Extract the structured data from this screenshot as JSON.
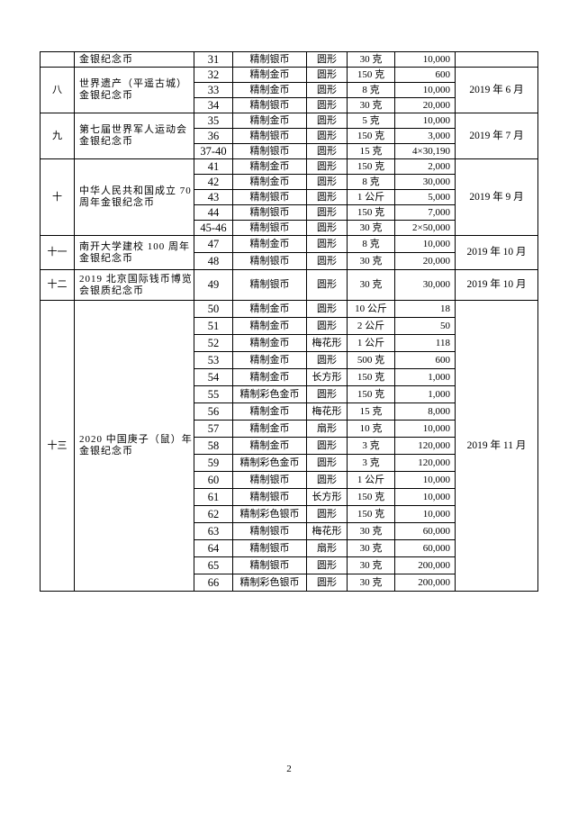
{
  "table": {
    "groups": [
      {
        "index": "",
        "name": "金银纪念币",
        "date": "",
        "row_height": 17,
        "rows": [
          {
            "no": "31",
            "type": "精制银币",
            "shape": "圆形",
            "weight": "30 克",
            "qty": "10,000"
          }
        ]
      },
      {
        "index": "八",
        "name": "世界遗产（平遥古城）金银纪念币",
        "date": "2019 年 6 月",
        "row_height": 17,
        "rows": [
          {
            "no": "32",
            "type": "精制金币",
            "shape": "圆形",
            "weight": "150 克",
            "qty": "600"
          },
          {
            "no": "33",
            "type": "精制金币",
            "shape": "圆形",
            "weight": "8 克",
            "qty": "10,000"
          },
          {
            "no": "34",
            "type": "精制银币",
            "shape": "圆形",
            "weight": "30 克",
            "qty": "20,000"
          }
        ]
      },
      {
        "index": "九",
        "name": "第七届世界军人运动会金银纪念币",
        "date": "2019 年 7 月",
        "row_height": 17,
        "rows": [
          {
            "no": "35",
            "type": "精制金币",
            "shape": "圆形",
            "weight": "5 克",
            "qty": "10,000"
          },
          {
            "no": "36",
            "type": "精制银币",
            "shape": "圆形",
            "weight": "150 克",
            "qty": "3,000"
          },
          {
            "no": "37-40",
            "type": "精制银币",
            "shape": "圆形",
            "weight": "15 克",
            "qty": "4×30,190"
          }
        ]
      },
      {
        "index": "十",
        "name": "中华人民共和国成立 70 周年金银纪念币",
        "date": "2019 年 9 月",
        "row_height": 17,
        "rows": [
          {
            "no": "41",
            "type": "精制金币",
            "shape": "圆形",
            "weight": "150 克",
            "qty": "2,000"
          },
          {
            "no": "42",
            "type": "精制金币",
            "shape": "圆形",
            "weight": "8 克",
            "qty": "30,000"
          },
          {
            "no": "43",
            "type": "精制银币",
            "shape": "圆形",
            "weight": "1 公斤",
            "qty": "5,000"
          },
          {
            "no": "44",
            "type": "精制银币",
            "shape": "圆形",
            "weight": "150 克",
            "qty": "7,000"
          },
          {
            "no": "45-46",
            "type": "精制银币",
            "shape": "圆形",
            "weight": "30 克",
            "qty": "2×50,000"
          }
        ]
      },
      {
        "index": "十一",
        "name": "南开大学建校 100 周年金银纪念币",
        "date": "2019 年 10 月",
        "row_height": 19,
        "rows": [
          {
            "no": "47",
            "type": "精制金币",
            "shape": "圆形",
            "weight": "8 克",
            "qty": "10,000"
          },
          {
            "no": "48",
            "type": "精制银币",
            "shape": "圆形",
            "weight": "30 克",
            "qty": "20,000"
          }
        ]
      },
      {
        "index": "十二",
        "name": "2019 北京国际钱币博览会银质纪念币",
        "date": "2019 年 10 月",
        "row_height": 34,
        "rows": [
          {
            "no": "49",
            "type": "精制银币",
            "shape": "圆形",
            "weight": "30 克",
            "qty": "30,000"
          }
        ]
      },
      {
        "index": "十三",
        "name": "2020 中国庚子（鼠）年金银纪念币",
        "date": "2019 年 11 月",
        "row_height": 19,
        "rows": [
          {
            "no": "50",
            "type": "精制金币",
            "shape": "圆形",
            "weight": "10 公斤",
            "qty": "18"
          },
          {
            "no": "51",
            "type": "精制金币",
            "shape": "圆形",
            "weight": "2 公斤",
            "qty": "50"
          },
          {
            "no": "52",
            "type": "精制金币",
            "shape": "梅花形",
            "weight": "1 公斤",
            "qty": "118"
          },
          {
            "no": "53",
            "type": "精制金币",
            "shape": "圆形",
            "weight": "500 克",
            "qty": "600"
          },
          {
            "no": "54",
            "type": "精制金币",
            "shape": "长方形",
            "weight": "150 克",
            "qty": "1,000"
          },
          {
            "no": "55",
            "type": "精制彩色金币",
            "shape": "圆形",
            "weight": "150 克",
            "qty": "1,000"
          },
          {
            "no": "56",
            "type": "精制金币",
            "shape": "梅花形",
            "weight": "15 克",
            "qty": "8,000"
          },
          {
            "no": "57",
            "type": "精制金币",
            "shape": "扇形",
            "weight": "10 克",
            "qty": "10,000"
          },
          {
            "no": "58",
            "type": "精制金币",
            "shape": "圆形",
            "weight": "3 克",
            "qty": "120,000"
          },
          {
            "no": "59",
            "type": "精制彩色金币",
            "shape": "圆形",
            "weight": "3 克",
            "qty": "120,000"
          },
          {
            "no": "60",
            "type": "精制银币",
            "shape": "圆形",
            "weight": "1 公斤",
            "qty": "10,000"
          },
          {
            "no": "61",
            "type": "精制银币",
            "shape": "长方形",
            "weight": "150 克",
            "qty": "10,000"
          },
          {
            "no": "62",
            "type": "精制彩色银币",
            "shape": "圆形",
            "weight": "150 克",
            "qty": "10,000"
          },
          {
            "no": "63",
            "type": "精制银币",
            "shape": "梅花形",
            "weight": "30 克",
            "qty": "60,000"
          },
          {
            "no": "64",
            "type": "精制银币",
            "shape": "扇形",
            "weight": "30 克",
            "qty": "60,000"
          },
          {
            "no": "65",
            "type": "精制银币",
            "shape": "圆形",
            "weight": "30 克",
            "qty": "200,000"
          },
          {
            "no": "66",
            "type": "精制彩色银币",
            "shape": "圆形",
            "weight": "30 克",
            "qty": "200,000"
          }
        ]
      }
    ]
  },
  "page_number": "2"
}
